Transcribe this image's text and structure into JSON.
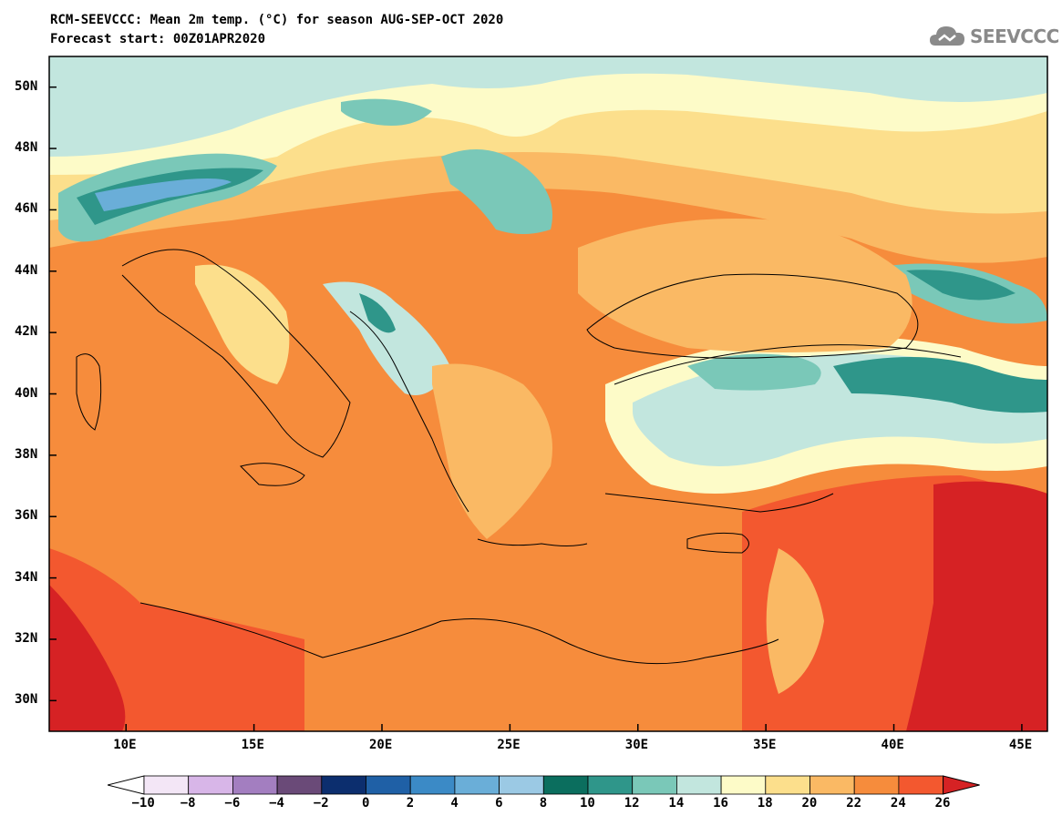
{
  "header": {
    "title_line1": "RCM-SEEVCCC: Mean 2m temp. (°C) for season AUG-SEP-OCT 2020",
    "title_line2": "Forecast start: 00Z01APR2020",
    "logo_text": "SEEVCCC"
  },
  "map": {
    "lat_labels": [
      "50N",
      "48N",
      "46N",
      "44N",
      "42N",
      "40N",
      "38N",
      "36N",
      "34N",
      "32N",
      "30N"
    ],
    "lat_values": [
      50,
      48,
      46,
      44,
      42,
      40,
      38,
      36,
      34,
      32,
      30
    ],
    "lon_labels": [
      "10E",
      "15E",
      "20E",
      "25E",
      "30E",
      "35E",
      "40E",
      "45E"
    ],
    "lon_values": [
      10,
      15,
      20,
      25,
      30,
      35,
      40,
      45
    ],
    "lon_range": [
      7,
      46
    ],
    "lat_range": [
      29,
      51
    ]
  },
  "colorbar": {
    "labels": [
      "−10",
      "−8",
      "−6",
      "−4",
      "−2",
      "0",
      "2",
      "4",
      "6",
      "8",
      "10",
      "12",
      "14",
      "16",
      "18",
      "20",
      "22",
      "24",
      "26"
    ],
    "levels": [
      -10,
      -8,
      -6,
      -4,
      -2,
      0,
      2,
      4,
      6,
      8,
      10,
      12,
      14,
      16,
      18,
      20,
      22,
      24,
      26
    ],
    "colors": [
      "#f3e6f6",
      "#d8b6e8",
      "#a37ec0",
      "#6a4a78",
      "#0c2e6e",
      "#1f60a6",
      "#3b8ac6",
      "#6aaed8",
      "#9bc9e4",
      "#0b6e5e",
      "#2f968a",
      "#7ac8b8",
      "#c2e6de",
      "#fdfbc8",
      "#fcdf8c",
      "#fab964",
      "#f68c3c",
      "#f3582f"
    ],
    "under_color": "#ffffff",
    "over_color": "#d62224"
  }
}
